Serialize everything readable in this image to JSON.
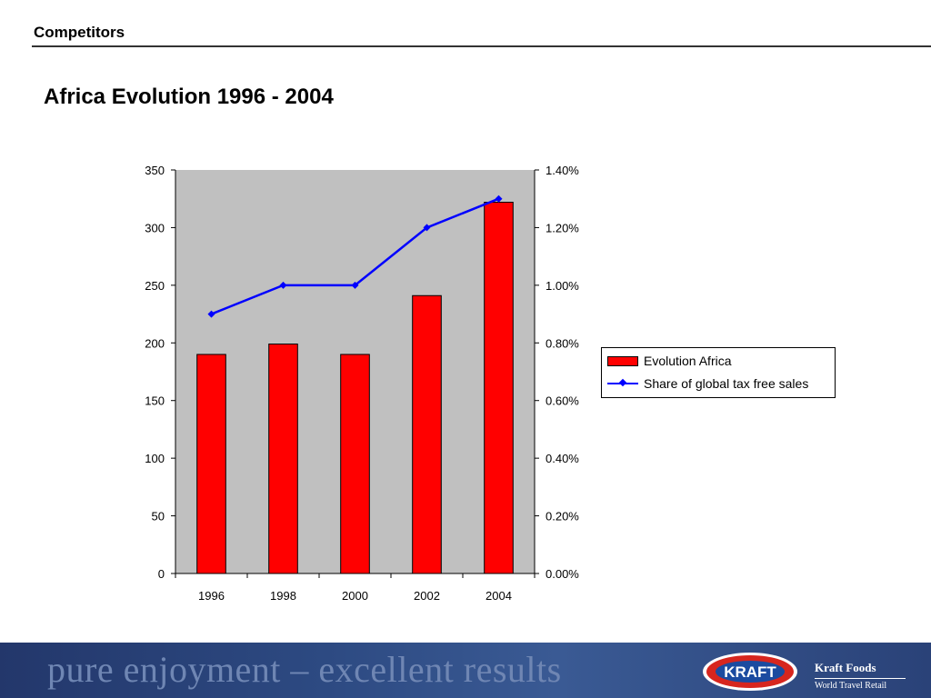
{
  "header": {
    "section": "Competitors"
  },
  "slide": {
    "title": "Africa Evolution 1996 - 2004"
  },
  "chart_data": {
    "type": "bar",
    "title": "",
    "categories": [
      "1996",
      "1998",
      "2000",
      "2002",
      "2004"
    ],
    "series": [
      {
        "name": "Evolution Africa",
        "type": "bar",
        "axis": "left",
        "color": "#ff0000",
        "values": [
          190,
          199,
          190,
          241,
          322
        ]
      },
      {
        "name": "Share of global tax free sales",
        "type": "line",
        "axis": "right",
        "color": "#0000ff",
        "values": [
          0.009,
          0.01,
          0.01,
          0.012,
          0.013
        ]
      }
    ],
    "y_left": {
      "min": 0,
      "max": 350,
      "ticks": [
        "0",
        "50",
        "100",
        "150",
        "200",
        "250",
        "300",
        "350"
      ]
    },
    "y_right": {
      "min": 0,
      "max": 0.014,
      "ticks": [
        "0.00%",
        "0.20%",
        "0.40%",
        "0.60%",
        "0.80%",
        "1.00%",
        "1.20%",
        "1.40%"
      ]
    },
    "plot_background": "#c0c0c0",
    "grid": false,
    "legend_position": "right"
  },
  "footer": {
    "slogan": "pure enjoyment – excellent results",
    "logo_text": "KRAFT",
    "brand_name": "Kraft Foods",
    "brand_sub": "World Travel Retail"
  }
}
